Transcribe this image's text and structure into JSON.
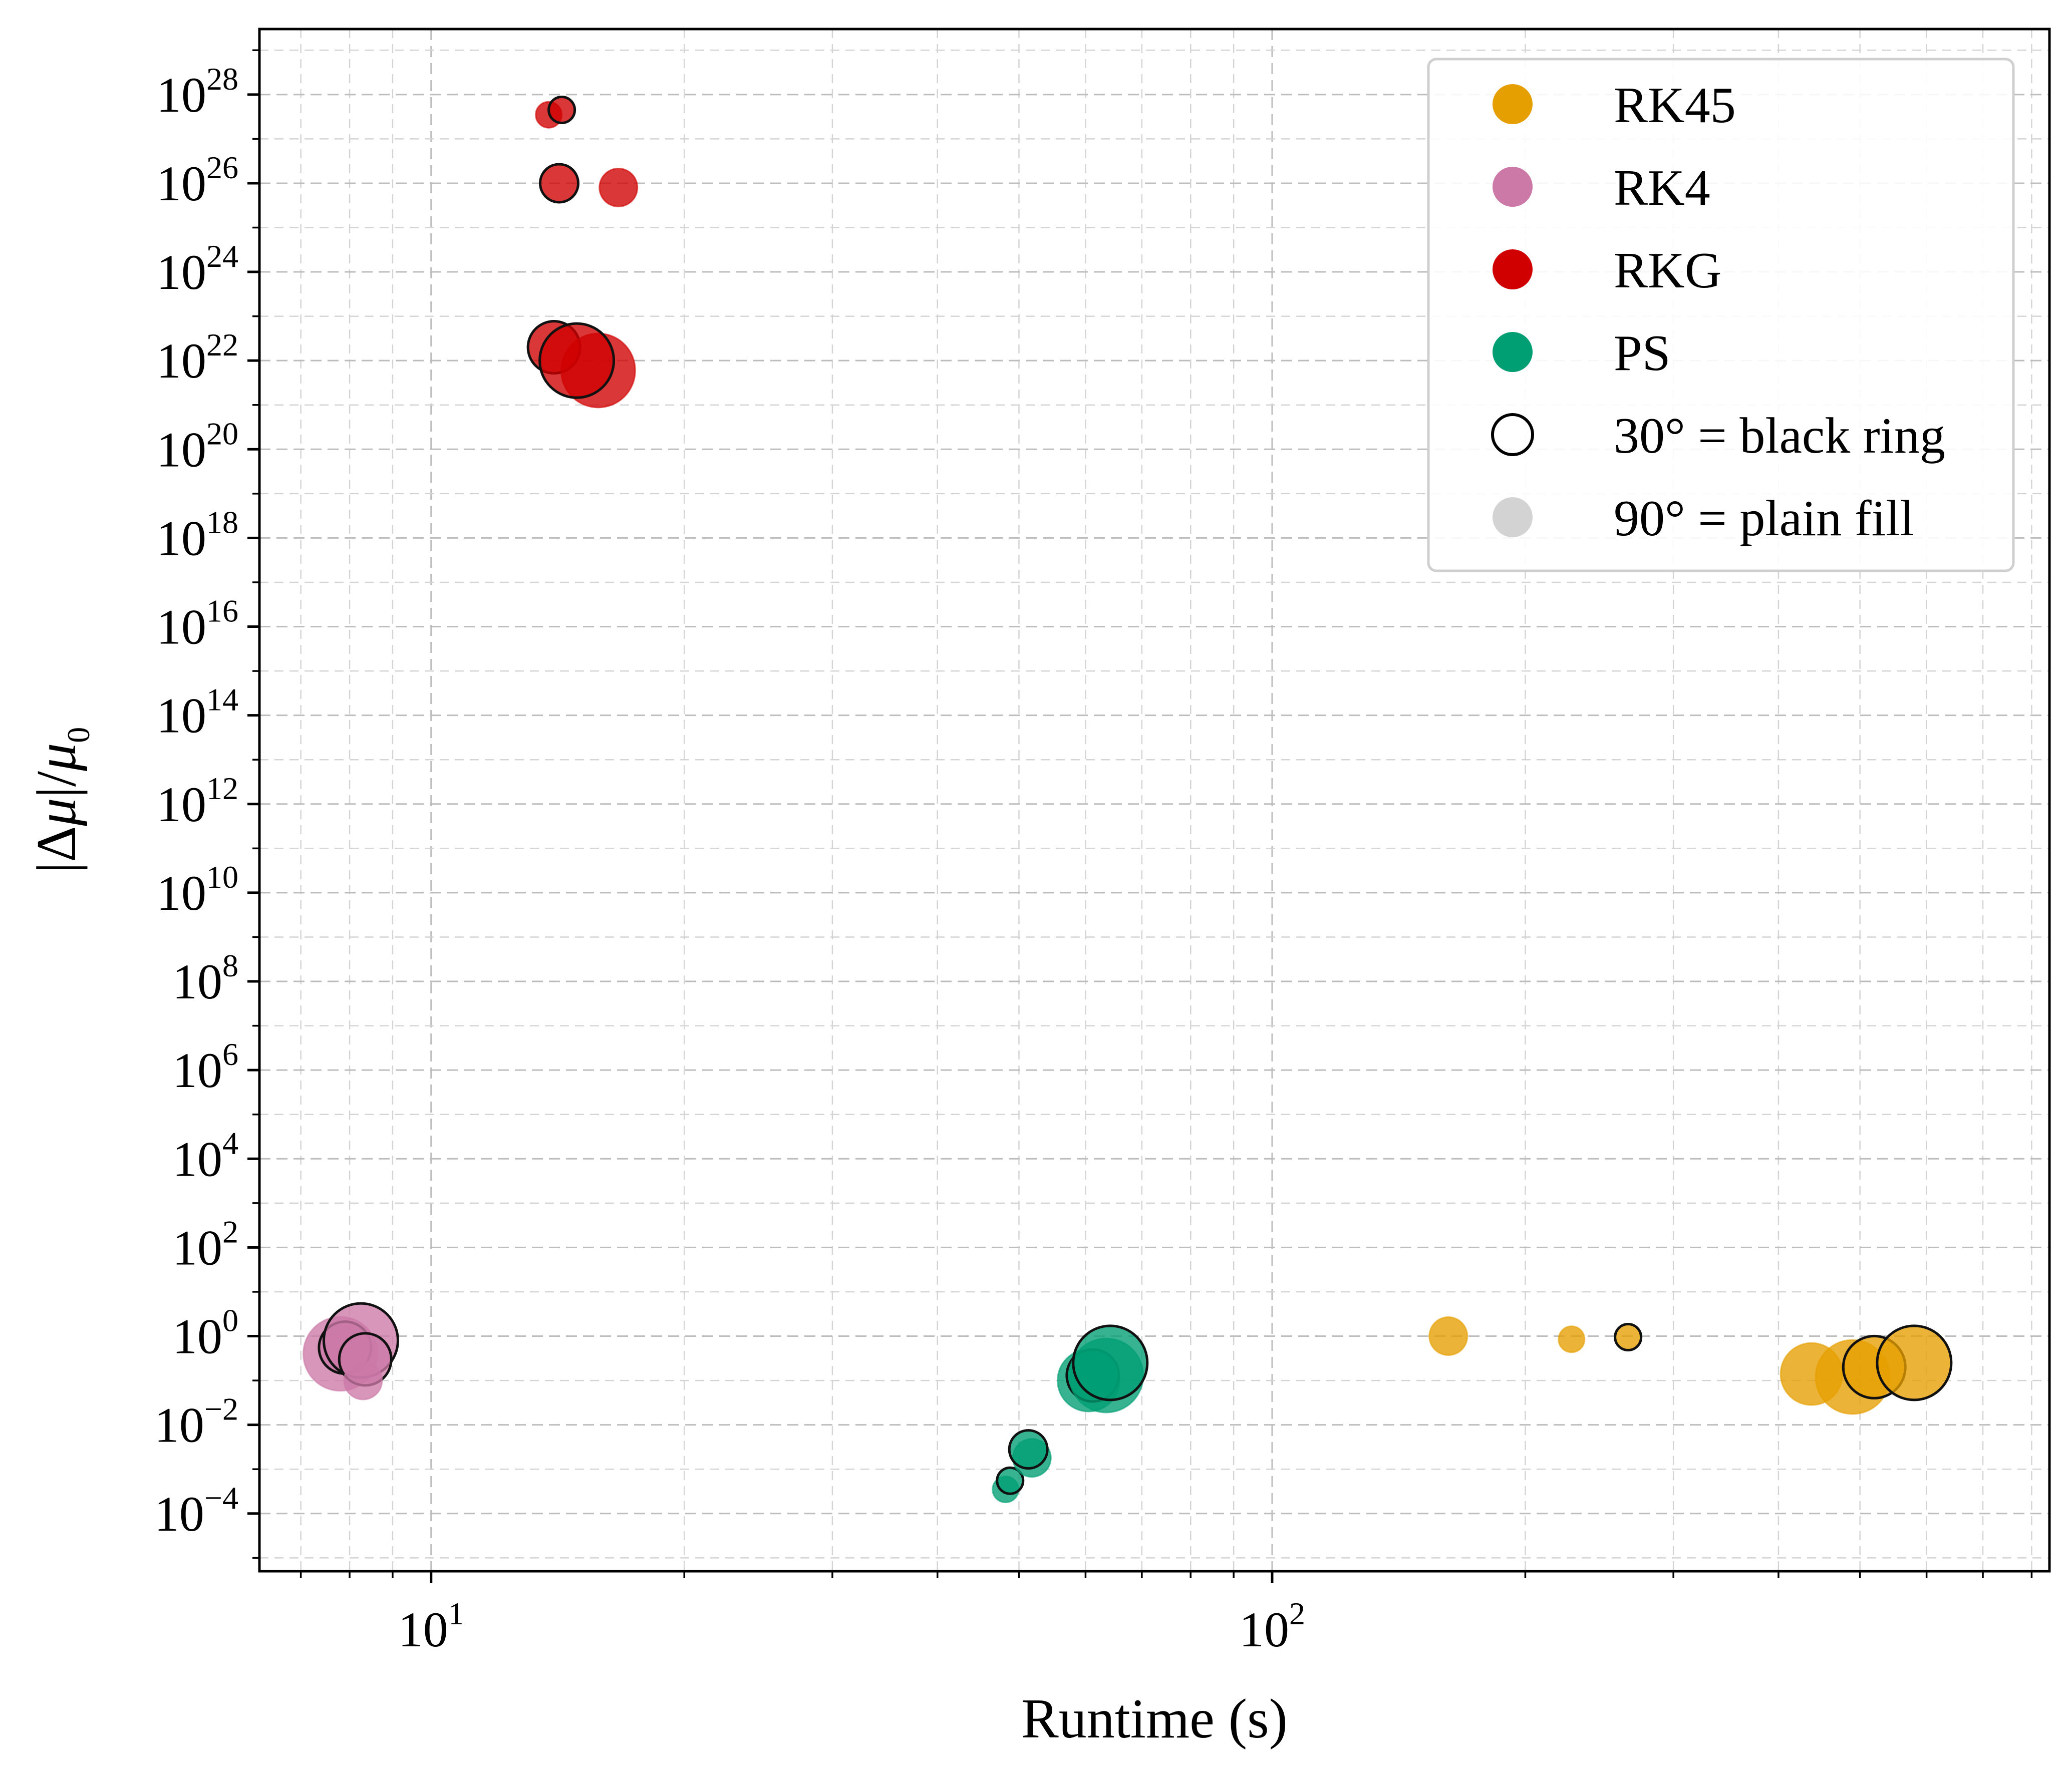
{
  "chart_data": {
    "type": "scatter",
    "xlabel": "Runtime (s)",
    "ylabel_parts": [
      "|Δ",
      "μ",
      "|/",
      "μ",
      "0"
    ],
    "x_scale": "log",
    "y_scale": "log",
    "xlim": [
      6.25,
      840
    ],
    "ylim": [
      5e-06,
      3e+29
    ],
    "x_ticks": [
      {
        "base": "10",
        "exp": "1",
        "value": 10
      },
      {
        "base": "10",
        "exp": "2",
        "value": 100
      }
    ],
    "y_ticks": [
      {
        "base": "10",
        "exp": "28",
        "value": 1e+28
      },
      {
        "base": "10",
        "exp": "26",
        "value": 1e+26
      },
      {
        "base": "10",
        "exp": "24",
        "value": 1e+24
      },
      {
        "base": "10",
        "exp": "22",
        "value": 1e+22
      },
      {
        "base": "10",
        "exp": "20",
        "value": 1e+20
      },
      {
        "base": "10",
        "exp": "18",
        "value": 1e+18
      },
      {
        "base": "10",
        "exp": "16",
        "value": 1e+16
      },
      {
        "base": "10",
        "exp": "14",
        "value": 100000000000000.0
      },
      {
        "base": "10",
        "exp": "12",
        "value": 1000000000000.0
      },
      {
        "base": "10",
        "exp": "10",
        "value": 10000000000.0
      },
      {
        "base": "10",
        "exp": "8",
        "value": 100000000.0
      },
      {
        "base": "10",
        "exp": "6",
        "value": 1000000.0
      },
      {
        "base": "10",
        "exp": "4",
        "value": 10000.0
      },
      {
        "base": "10",
        "exp": "2",
        "value": 100.0
      },
      {
        "base": "10",
        "exp": "0",
        "value": 1
      },
      {
        "base": "10",
        "exp": "−2",
        "value": 0.01
      },
      {
        "base": "10",
        "exp": "−4",
        "value": 0.0001
      }
    ],
    "grid": true,
    "legend_position": "top-right",
    "legend": [
      {
        "label": "RK45",
        "color": "#E69F00",
        "style": "fill"
      },
      {
        "label": "RK4",
        "color": "#CC79A7",
        "style": "fill"
      },
      {
        "label": "RKG",
        "color": "#D00000",
        "style": "fill"
      },
      {
        "label": "PS",
        "color": "#009E73",
        "style": "fill"
      },
      {
        "label": "30° = black ring",
        "color": "#000000",
        "style": "ring"
      },
      {
        "label": "90° = plain fill",
        "color": "#D3D3D3",
        "style": "fill"
      }
    ],
    "series": [
      {
        "name": "RK45",
        "color": "#E69F00",
        "points": [
          {
            "x": 162,
            "y": 1.0,
            "size": 2,
            "ring": false
          },
          {
            "x": 227,
            "y": 0.85,
            "size": 1,
            "ring": false
          },
          {
            "x": 265,
            "y": 0.95,
            "size": 1,
            "ring": true
          },
          {
            "x": 438,
            "y": 0.14,
            "size": 4,
            "ring": false
          },
          {
            "x": 490,
            "y": 0.12,
            "size": 5,
            "ring": false
          },
          {
            "x": 520,
            "y": 0.2,
            "size": 4,
            "ring": true
          },
          {
            "x": 580,
            "y": 0.25,
            "size": 5,
            "ring": true
          }
        ]
      },
      {
        "name": "RK4",
        "color": "#CC79A7",
        "points": [
          {
            "x": 7.8,
            "y": 0.4,
            "size": 5,
            "ring": false
          },
          {
            "x": 7.9,
            "y": 0.55,
            "size": 3,
            "ring": true
          },
          {
            "x": 8.25,
            "y": 0.8,
            "size": 5,
            "ring": true
          },
          {
            "x": 8.35,
            "y": 0.3,
            "size": 3,
            "ring": true
          },
          {
            "x": 8.3,
            "y": 0.1,
            "size": 2,
            "ring": false
          }
        ]
      },
      {
        "name": "RKG",
        "color": "#D00000",
        "points": [
          {
            "x": 13.8,
            "y": 3.5e+27,
            "size": 1,
            "ring": false
          },
          {
            "x": 14.3,
            "y": 4.5e+27,
            "size": 1,
            "ring": true
          },
          {
            "x": 14.2,
            "y": 1e+26,
            "size": 2,
            "ring": true
          },
          {
            "x": 16.7,
            "y": 8e+25,
            "size": 2,
            "ring": false
          },
          {
            "x": 14.0,
            "y": 2e+22,
            "size": 3,
            "ring": true
          },
          {
            "x": 15.8,
            "y": 6e+21,
            "size": 5,
            "ring": false
          },
          {
            "x": 14.9,
            "y": 1e+22,
            "size": 5,
            "ring": true
          }
        ]
      },
      {
        "name": "PS",
        "color": "#009E73",
        "points": [
          {
            "x": 48.2,
            "y": 0.00035,
            "size": 1,
            "ring": false
          },
          {
            "x": 48.8,
            "y": 0.00055,
            "size": 1,
            "ring": true
          },
          {
            "x": 51.8,
            "y": 0.0018,
            "size": 2,
            "ring": false
          },
          {
            "x": 51.3,
            "y": 0.0028,
            "size": 2,
            "ring": true
          },
          {
            "x": 60.5,
            "y": 0.1,
            "size": 4,
            "ring": false
          },
          {
            "x": 61.2,
            "y": 0.13,
            "size": 3,
            "ring": true
          },
          {
            "x": 63.5,
            "y": 0.13,
            "size": 5,
            "ring": false
          },
          {
            "x": 64.2,
            "y": 0.25,
            "size": 5,
            "ring": true
          }
        ]
      }
    ]
  }
}
